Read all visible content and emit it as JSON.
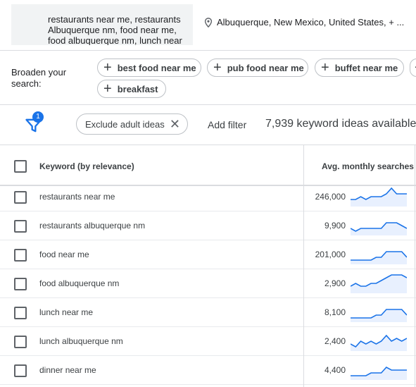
{
  "query": {
    "lines": [
      "restaurants near me, restaurants",
      "Albuquerque nm, food near me,",
      "food albuquerque nm, lunch near"
    ]
  },
  "location": {
    "text": "Albuquerque, New Mexico, United States, + ..."
  },
  "broaden": {
    "label": "Broaden your search:",
    "chips": [
      "best food near me",
      "pub food near me",
      "buffet near me",
      "breakfast"
    ]
  },
  "filters": {
    "badge_count": "1",
    "exclude_chip": "Exclude adult ideas",
    "add_filter": "Add filter",
    "ideas_count": "7,939 keyword ideas available"
  },
  "table": {
    "headers": {
      "keyword": "Keyword (by relevance)",
      "avg": "Avg. monthly searches"
    },
    "rows": [
      {
        "keyword": "restaurants near me",
        "avg": "246,000",
        "trend": [
          2,
          2,
          3,
          2,
          3,
          3,
          3,
          4,
          6,
          4,
          4,
          4
        ]
      },
      {
        "keyword": "restaurants albuquerque nm",
        "avg": "9,900",
        "trend": [
          2,
          1,
          2,
          2,
          2,
          2,
          2,
          4,
          4,
          4,
          3,
          2
        ]
      },
      {
        "keyword": "food near me",
        "avg": "201,000",
        "trend": [
          1,
          1,
          1,
          1,
          1,
          2,
          2,
          4,
          4,
          4,
          4,
          2
        ]
      },
      {
        "keyword": "food albuquerque nm",
        "avg": "2,900",
        "trend": [
          2,
          3,
          2,
          2,
          3,
          3,
          4,
          5,
          6,
          6,
          6,
          5
        ]
      },
      {
        "keyword": "lunch near me",
        "avg": "8,100",
        "trend": [
          1,
          1,
          1,
          1,
          1,
          2,
          2,
          4,
          4,
          4,
          4,
          2
        ]
      },
      {
        "keyword": "lunch albuquerque nm",
        "avg": "2,400",
        "trend": [
          2,
          1,
          3,
          2,
          3,
          2,
          3,
          5,
          3,
          4,
          3,
          4
        ]
      },
      {
        "keyword": "dinner near me",
        "avg": "4,400",
        "trend": [
          1,
          1,
          1,
          1,
          2,
          2,
          2,
          4,
          3,
          3,
          3,
          3
        ]
      }
    ]
  },
  "colors": {
    "accent": "#1a73e8",
    "spark_fill": "#e8f0fe",
    "divider": "#dadce0"
  }
}
